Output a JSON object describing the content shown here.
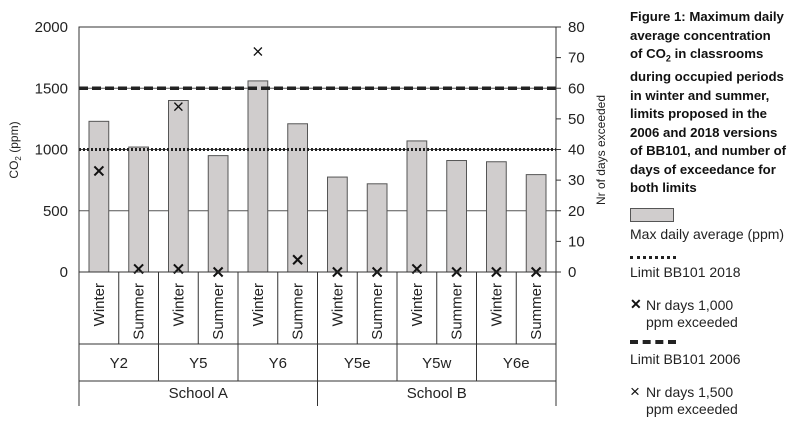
{
  "caption": {
    "l1": "Figure 1: Maximum daily",
    "l2": "average concentration",
    "l3a": "of CO",
    "l3sub": "2",
    "l3b": " in classrooms",
    "l4": "during occupied periods",
    "l5": "in winter and summer,",
    "l6": "limits proposed in the",
    "l7": "2006 and 2018 versions",
    "l8": "of BB101, and number of",
    "l9": "days of exceedance for",
    "l10": "both limits"
  },
  "legend": {
    "bar": "Max daily average (ppm)",
    "limit2018": "Limit BB101 2018",
    "cross1000_l1": "Nr days 1,000",
    "cross1000_l2": "ppm exceeded",
    "limit2006": "Limit BB101 2006",
    "cross1500_l1": "Nr days 1,500",
    "cross1500_l2": "ppm exceeded",
    "cross1000_mark": "✕",
    "cross1500_mark": "×"
  },
  "colors": {
    "bar": "#d0cdcd",
    "bar_edge": "#555555",
    "lines": "#222222"
  },
  "chart_data": {
    "type": "bar",
    "ylabel": "CO2 (ppm)",
    "ylabel_main": "CO",
    "ylabel_sub": "2",
    "ylabel_tail": " (ppm)",
    "y2label": "Nr of days exceeded",
    "ylim": [
      0,
      2000
    ],
    "y2lim": [
      0,
      80
    ],
    "yticks": [
      0,
      500,
      1000,
      1500,
      2000
    ],
    "y2ticks": [
      0,
      10,
      20,
      30,
      40,
      50,
      60,
      70,
      80
    ],
    "categories": [
      "Winter",
      "Summer",
      "Winter",
      "Summer",
      "Winter",
      "Summer",
      "Winter",
      "Summer",
      "Winter",
      "Summer",
      "Winter",
      "Summer"
    ],
    "classrooms": [
      "Y2",
      "Y5",
      "Y6",
      "Y5e",
      "Y5w",
      "Y6e"
    ],
    "schools": [
      {
        "name": "School A",
        "span": 3
      },
      {
        "name": "School B",
        "span": 3
      }
    ],
    "series": [
      {
        "name": "Max daily average (ppm)",
        "kind": "bar",
        "values": [
          1230,
          1020,
          1400,
          950,
          1560,
          1210,
          775,
          720,
          1070,
          910,
          900,
          795
        ]
      },
      {
        "name": "Nr days 1,000 ppm exceeded",
        "kind": "marker",
        "axis": "y2",
        "values": [
          33,
          1,
          1,
          0,
          null,
          4,
          0,
          0,
          1,
          0,
          0,
          0
        ]
      },
      {
        "name": "Nr days 1,500 ppm exceeded",
        "kind": "marker",
        "axis": "y2",
        "values": [
          null,
          null,
          54,
          null,
          72,
          null,
          null,
          null,
          null,
          null,
          null,
          null
        ]
      }
    ],
    "limits": [
      {
        "name": "Limit BB101 2018",
        "value": 1000,
        "style": "dotted"
      },
      {
        "name": "Limit BB101 2006",
        "value": 1500,
        "style": "dashed"
      }
    ],
    "grid": true,
    "legend_position": "right"
  }
}
